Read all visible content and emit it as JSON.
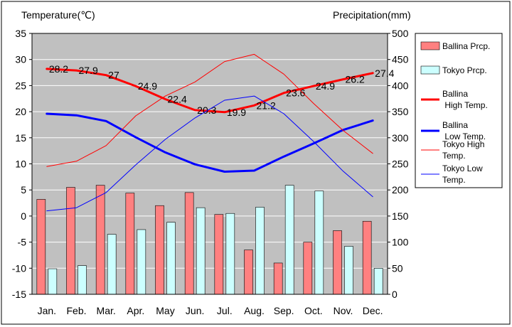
{
  "chart_data": {
    "type": "bar",
    "left_axis_label": "Temperature(℃)",
    "right_axis_label": "Precipitation(mm)",
    "categories": [
      "Jan.",
      "Feb.",
      "Mar.",
      "Apr.",
      "May",
      "Jun.",
      "Jul.",
      "Aug.",
      "Sep.",
      "Oct.",
      "Nov.",
      "Dec."
    ],
    "ylim_left": [
      -15,
      35
    ],
    "yticks_left": [
      -15,
      -10,
      -5,
      0,
      5,
      10,
      15,
      20,
      25,
      30,
      35
    ],
    "ylim_right": [
      0,
      500
    ],
    "yticks_right": [
      0,
      50,
      100,
      150,
      200,
      250,
      300,
      350,
      400,
      450,
      500
    ],
    "grid": true,
    "legend_position": "right",
    "bar_series": [
      {
        "name": "Ballina Prcp.",
        "axis": "right",
        "color": "#ff8080",
        "values": [
          182,
          205,
          209,
          194,
          170,
          195,
          153,
          85,
          60,
          100,
          122,
          140
        ]
      },
      {
        "name": "Tokyo Prcp.",
        "axis": "right",
        "color": "#ccffff",
        "values": [
          49,
          55,
          115,
          124,
          138,
          166,
          155,
          167,
          209,
          198,
          92,
          50
        ]
      }
    ],
    "line_series": [
      {
        "name": "Ballina High Temp.",
        "axis": "left",
        "color": "#ff0000",
        "width": 3,
        "values": [
          28.2,
          27.9,
          27.0,
          24.9,
          22.4,
          20.3,
          19.9,
          21.2,
          23.6,
          24.9,
          26.2,
          27.4
        ],
        "labels": [
          "28.2",
          "27.9",
          "27",
          "24.9",
          "22.4",
          "20.3",
          "19.9",
          "21.2",
          "23.6",
          "24.9",
          "26.2",
          "27.4"
        ]
      },
      {
        "name": "Ballina Low Temp.",
        "axis": "left",
        "color": "#0000ff",
        "width": 3,
        "values": [
          19.6,
          19.3,
          18.2,
          15.1,
          12.2,
          9.9,
          8.5,
          8.7,
          11.4,
          13.9,
          16.5,
          18.3
        ]
      },
      {
        "name": "Tokyo High Temp.",
        "axis": "left",
        "color": "#ff0000",
        "width": 1,
        "values": [
          9.5,
          10.5,
          13.5,
          19.2,
          23.0,
          25.7,
          29.6,
          31.0,
          27.2,
          21.6,
          16.4,
          12.0
        ]
      },
      {
        "name": "Tokyo Low Temp.",
        "axis": "left",
        "color": "#0000ff",
        "width": 1,
        "values": [
          1.0,
          1.6,
          4.5,
          9.8,
          14.7,
          18.8,
          22.2,
          23.0,
          19.6,
          14.3,
          8.6,
          3.7
        ]
      }
    ],
    "legend_items": [
      {
        "label": "Ballina Prcp.",
        "kind": "box",
        "color": "#ff8080"
      },
      {
        "label": "Tokyo Prcp.",
        "kind": "box",
        "color": "#ccffff"
      },
      {
        "label": "Ballina\n High Temp.",
        "kind": "line",
        "color": "#ff0000",
        "width": 3
      },
      {
        "label": "Ballina\n Low Temp.",
        "kind": "line",
        "color": "#0000ff",
        "width": 3
      },
      {
        "label": "Tokyo High\nTemp.",
        "kind": "line",
        "color": "#ff0000",
        "width": 1
      },
      {
        "label": "Tokyo Low\nTemp.",
        "kind": "line",
        "color": "#0000ff",
        "width": 1
      }
    ],
    "colors": {
      "plot_bg": "#c0c0c0",
      "gridline": "#ffffff"
    }
  }
}
